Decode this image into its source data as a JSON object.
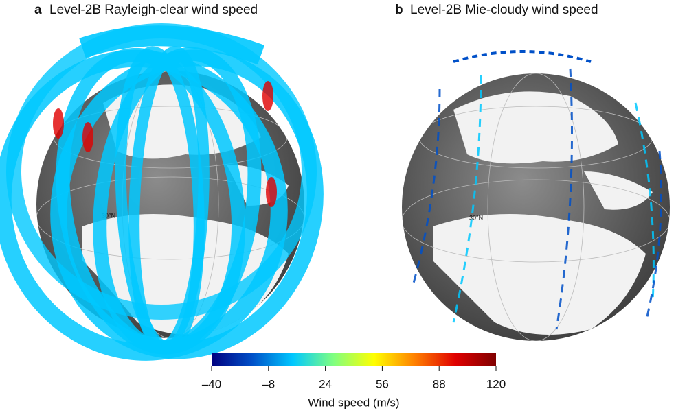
{
  "panels": [
    {
      "letter": "a",
      "title": "Level-2B Rayleigh-clear wind speed",
      "grid_label": "30°N"
    },
    {
      "letter": "b",
      "title": "Level-2B Mie-cloudy wind speed",
      "grid_label": "30°N"
    }
  ],
  "colorbar": {
    "label": "Wind speed (m/s)",
    "range": [
      -40,
      120
    ],
    "ticks": [
      {
        "value": -40,
        "label": "–40"
      },
      {
        "value": -8,
        "label": "–8"
      },
      24,
      56,
      88,
      120
    ],
    "colors": [
      "#00007f",
      "#0050c8",
      "#00c8ff",
      "#80ff80",
      "#ffff00",
      "#ff8000",
      "#e00000",
      "#7f0000"
    ]
  }
}
